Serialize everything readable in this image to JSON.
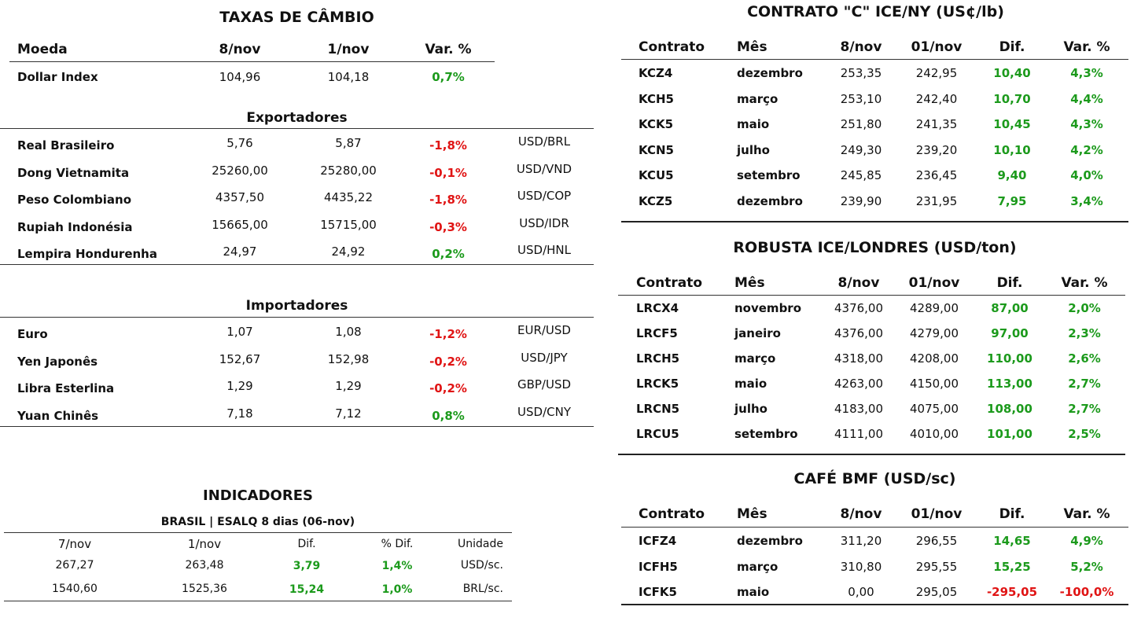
{
  "fx": {
    "title": "TAXAS DE CÂMBIO",
    "headers": {
      "moeda": "Moeda",
      "d1": "8/nov",
      "d2": "1/nov",
      "var": "Var. %"
    },
    "dollar_index": {
      "name": "Dollar Index",
      "v1": "104,96",
      "v2": "104,18",
      "var": "0,7%"
    },
    "exporters_title": "Exportadores",
    "exporters": [
      {
        "name": "Real Brasileiro",
        "v1": "5,76",
        "v2": "5,87",
        "var": "-1,8%",
        "pair": "USD/BRL"
      },
      {
        "name": "Dong Vietnamita",
        "v1": "25260,00",
        "v2": "25280,00",
        "var": "-0,1%",
        "pair": "USD/VND"
      },
      {
        "name": "Peso Colombiano",
        "v1": "4357,50",
        "v2": "4435,22",
        "var": "-1,8%",
        "pair": "USD/COP"
      },
      {
        "name": "Rupiah Indonésia",
        "v1": "15665,00",
        "v2": "15715,00",
        "var": "-0,3%",
        "pair": "USD/IDR"
      },
      {
        "name": "Lempira Hondurenha",
        "v1": "24,97",
        "v2": "24,92",
        "var": "0,2%",
        "pair": "USD/HNL"
      }
    ],
    "importers_title": "Importadores",
    "importers": [
      {
        "name": "Euro",
        "v1": "1,07",
        "v2": "1,08",
        "var": "-1,2%",
        "pair": "EUR/USD"
      },
      {
        "name": "Yen Japonês",
        "v1": "152,67",
        "v2": "152,98",
        "var": "-0,2%",
        "pair": "USD/JPY"
      },
      {
        "name": "Libra Esterlina",
        "v1": "1,29",
        "v2": "1,29",
        "var": "-0,2%",
        "pair": "GBP/USD"
      },
      {
        "name": "Yuan Chinês",
        "v1": "7,18",
        "v2": "7,12",
        "var": "0,8%",
        "pair": "USD/CNY"
      }
    ]
  },
  "indicators": {
    "title": "INDICADORES",
    "subtitle": "BRASIL | ESALQ 8 dias (06-nov)",
    "headers": {
      "d1": "7/nov",
      "d2": "1/nov",
      "dif": "Dif.",
      "pdif": "% Dif.",
      "unit": "Unidade"
    },
    "rows": [
      {
        "v1": "267,27",
        "v2": "263,48",
        "dif": "3,79",
        "pdif": "1,4%",
        "unit": "USD/sc."
      },
      {
        "v1": "1540,60",
        "v2": "1525,36",
        "dif": "15,24",
        "pdif": "1,0%",
        "unit": "BRL/sc."
      }
    ]
  },
  "arabica": {
    "title": "CONTRATO \"C\" ICE/NY (US¢/lb)",
    "headers": {
      "c": "Contrato",
      "m": "Mês",
      "d1": "8/nov",
      "d2": "01/nov",
      "dif": "Dif.",
      "var": "Var. %"
    },
    "rows": [
      {
        "c": "KCZ4",
        "m": "dezembro",
        "v1": "253,35",
        "v2": "242,95",
        "dif": "10,40",
        "var": "4,3%"
      },
      {
        "c": "KCH5",
        "m": "março",
        "v1": "253,10",
        "v2": "242,40",
        "dif": "10,70",
        "var": "4,4%"
      },
      {
        "c": "KCK5",
        "m": "maio",
        "v1": "251,80",
        "v2": "241,35",
        "dif": "10,45",
        "var": "4,3%"
      },
      {
        "c": "KCN5",
        "m": "julho",
        "v1": "249,30",
        "v2": "239,20",
        "dif": "10,10",
        "var": "4,2%"
      },
      {
        "c": "KCU5",
        "m": "setembro",
        "v1": "245,85",
        "v2": "236,45",
        "dif": "9,40",
        "var": "4,0%"
      },
      {
        "c": "KCZ5",
        "m": "dezembro",
        "v1": "239,90",
        "v2": "231,95",
        "dif": "7,95",
        "var": "3,4%"
      }
    ]
  },
  "robusta": {
    "title": "ROBUSTA ICE/LONDRES (USD/ton)",
    "headers": {
      "c": "Contrato",
      "m": "Mês",
      "d1": "8/nov",
      "d2": "01/nov",
      "dif": "Dif.",
      "var": "Var. %"
    },
    "rows": [
      {
        "c": "LRCX4",
        "m": "novembro",
        "v1": "4376,00",
        "v2": "4289,00",
        "dif": "87,00",
        "var": "2,0%"
      },
      {
        "c": "LRCF5",
        "m": "janeiro",
        "v1": "4376,00",
        "v2": "4279,00",
        "dif": "97,00",
        "var": "2,3%"
      },
      {
        "c": "LRCH5",
        "m": "março",
        "v1": "4318,00",
        "v2": "4208,00",
        "dif": "110,00",
        "var": "2,6%"
      },
      {
        "c": "LRCK5",
        "m": "maio",
        "v1": "4263,00",
        "v2": "4150,00",
        "dif": "113,00",
        "var": "2,7%"
      },
      {
        "c": "LRCN5",
        "m": "julho",
        "v1": "4183,00",
        "v2": "4075,00",
        "dif": "108,00",
        "var": "2,7%"
      },
      {
        "c": "LRCU5",
        "m": "setembro",
        "v1": "4111,00",
        "v2": "4010,00",
        "dif": "101,00",
        "var": "2,5%"
      }
    ]
  },
  "bmf": {
    "title": "CAFÉ BMF (USD/sc)",
    "headers": {
      "c": "Contrato",
      "m": "Mês",
      "d1": "8/nov",
      "d2": "01/nov",
      "dif": "Dif.",
      "var": "Var. %"
    },
    "rows": [
      {
        "c": "ICFZ4",
        "m": "dezembro",
        "v1": "311,20",
        "v2": "296,55",
        "dif": "14,65",
        "var": "4,9%"
      },
      {
        "c": "ICFH5",
        "m": "março",
        "v1": "310,80",
        "v2": "295,55",
        "dif": "15,25",
        "var": "5,2%"
      },
      {
        "c": "ICFK5",
        "m": "maio",
        "v1": "0,00",
        "v2": "295,05",
        "dif": "-295,05",
        "var": "-100,0%"
      }
    ]
  },
  "colors": {
    "positive": "#1c9a1c",
    "negative": "#e01414"
  }
}
